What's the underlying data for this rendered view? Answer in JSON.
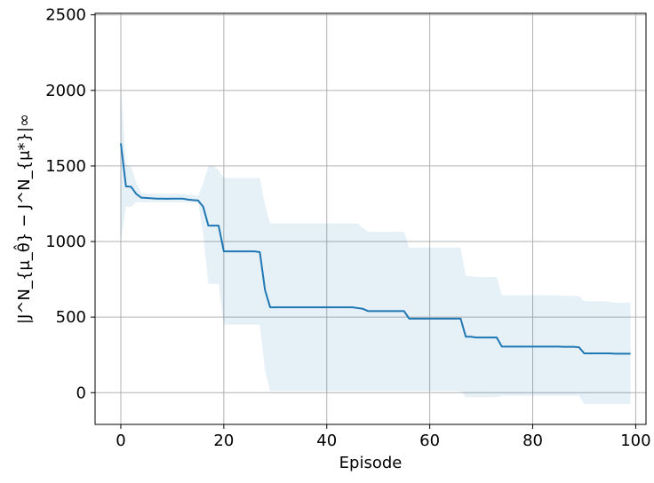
{
  "chart_data": {
    "type": "line",
    "title": "",
    "xlabel": "Episode",
    "ylabel": "|J^N_{μ_θ̂} − J^N_{μ*}|∞",
    "xlim": [
      -5,
      102
    ],
    "ylim": [
      -210,
      2510
    ],
    "xticks": [
      0,
      20,
      40,
      60,
      80,
      100
    ],
    "yticks": [
      0,
      500,
      1000,
      1500,
      2000,
      2500
    ],
    "xtick_labels": [
      "0",
      "20",
      "40",
      "60",
      "80",
      "100"
    ],
    "ytick_labels": [
      "0",
      "500",
      "1000",
      "1500",
      "2000",
      "2500"
    ],
    "grid": true,
    "legend": "none",
    "colors": {
      "line": "#1f77b4",
      "band": "#1f77b4",
      "band_opacity": 0.11,
      "grid": "#b0b0b0"
    },
    "series": [
      {
        "x": [
          0,
          1,
          2,
          3,
          4,
          5,
          6,
          7,
          8,
          9,
          10,
          11,
          12,
          13,
          14,
          15,
          16,
          17,
          18,
          19,
          20,
          21,
          22,
          23,
          24,
          25,
          26,
          27,
          28,
          29,
          30,
          31,
          32,
          33,
          34,
          35,
          36,
          37,
          38,
          39,
          40,
          41,
          42,
          43,
          44,
          45,
          46,
          47,
          48,
          49,
          50,
          51,
          52,
          53,
          54,
          55,
          56,
          57,
          58,
          59,
          60,
          61,
          62,
          63,
          64,
          65,
          66,
          67,
          68,
          69,
          70,
          71,
          72,
          73,
          74,
          75,
          76,
          77,
          78,
          79,
          80,
          81,
          82,
          83,
          84,
          85,
          86,
          87,
          88,
          89,
          90,
          91,
          92,
          93,
          94,
          95,
          96,
          97,
          98,
          99
        ],
        "y": [
          1650,
          1365,
          1362,
          1315,
          1290,
          1288,
          1286,
          1284,
          1284,
          1283,
          1284,
          1284,
          1284,
          1278,
          1274,
          1272,
          1230,
          1105,
          1105,
          1105,
          935,
          935,
          935,
          935,
          935,
          935,
          935,
          930,
          680,
          565,
          565,
          565,
          565,
          565,
          565,
          565,
          565,
          565,
          565,
          565,
          565,
          565,
          565,
          565,
          565,
          565,
          560,
          555,
          540,
          540,
          540,
          540,
          540,
          540,
          540,
          540,
          490,
          490,
          490,
          490,
          490,
          490,
          490,
          490,
          490,
          490,
          490,
          370,
          370,
          365,
          365,
          365,
          365,
          365,
          305,
          305,
          305,
          305,
          305,
          305,
          305,
          305,
          305,
          305,
          305,
          305,
          303,
          303,
          303,
          300,
          260,
          260,
          260,
          260,
          260,
          260,
          258,
          258,
          258,
          258
        ],
        "lower": [
          1000,
          1230,
          1230,
          1260,
          1260,
          1260,
          1260,
          1260,
          1260,
          1260,
          1260,
          1260,
          1260,
          1260,
          1260,
          1260,
          1050,
          720,
          720,
          720,
          450,
          450,
          450,
          450,
          450,
          450,
          450,
          450,
          150,
          10,
          10,
          10,
          10,
          10,
          10,
          10,
          10,
          10,
          10,
          10,
          10,
          10,
          10,
          10,
          10,
          10,
          10,
          10,
          10,
          10,
          10,
          10,
          10,
          10,
          10,
          10,
          10,
          10,
          10,
          10,
          10,
          10,
          10,
          10,
          10,
          10,
          10,
          -30,
          -30,
          -30,
          -30,
          -30,
          -30,
          -30,
          -20,
          -20,
          -20,
          -20,
          -20,
          -20,
          -20,
          -20,
          -20,
          -20,
          -20,
          -20,
          -20,
          -20,
          -20,
          -20,
          -75,
          -75,
          -75,
          -75,
          -75,
          -75,
          -75,
          -75,
          -75,
          -75
        ],
        "upper": [
          2030,
          1510,
          1495,
          1390,
          1320,
          1318,
          1316,
          1315,
          1315,
          1314,
          1315,
          1315,
          1315,
          1310,
          1308,
          1300,
          1385,
          1500,
          1500,
          1470,
          1420,
          1420,
          1420,
          1420,
          1420,
          1420,
          1420,
          1420,
          1240,
          1120,
          1120,
          1120,
          1120,
          1120,
          1120,
          1120,
          1120,
          1120,
          1120,
          1120,
          1120,
          1120,
          1120,
          1120,
          1120,
          1120,
          1120,
          1090,
          1065,
          1065,
          1065,
          1065,
          1065,
          1065,
          1065,
          1065,
          960,
          960,
          960,
          960,
          960,
          960,
          960,
          960,
          960,
          960,
          960,
          770,
          770,
          765,
          765,
          765,
          765,
          765,
          645,
          645,
          645,
          645,
          645,
          645,
          645,
          645,
          645,
          645,
          645,
          645,
          640,
          640,
          640,
          640,
          605,
          605,
          605,
          605,
          605,
          600,
          595,
          595,
          595,
          595
        ]
      }
    ]
  }
}
